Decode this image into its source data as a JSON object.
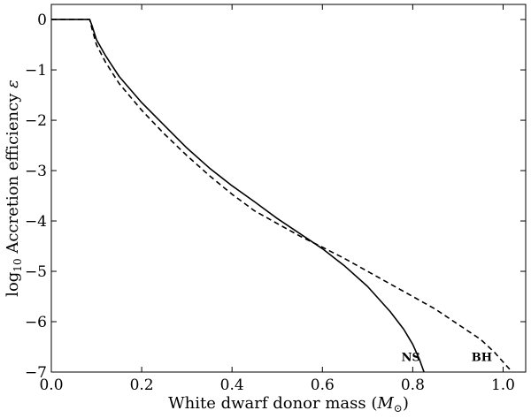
{
  "chart_data": {
    "type": "line",
    "xlabel": {
      "main": "White dwarf donor mass (",
      "sym": "M",
      "sub": "⊙",
      "close": ")"
    },
    "ylabel": {
      "prefix": "log",
      "sub": "10",
      "main": " Accretion efficiency ",
      "sym": "ε"
    },
    "xlim": [
      0.0,
      1.05
    ],
    "ylim": [
      -7,
      0.3
    ],
    "xticks": [
      0.0,
      0.2,
      0.4,
      0.6,
      0.8,
      1.0
    ],
    "xtick_labels": [
      "0.0",
      "0.2",
      "0.4",
      "0.6",
      "0.8",
      "1.0"
    ],
    "yticks": [
      0,
      -1,
      -2,
      -3,
      -4,
      -5,
      -6,
      -7
    ],
    "ytick_labels": [
      "0",
      "−1",
      "−2",
      "−3",
      "−4",
      "−5",
      "−6",
      "−7"
    ],
    "grid": false,
    "series": [
      {
        "name": "NS",
        "style": "solid",
        "color": "#000000",
        "points": [
          [
            0.0,
            0
          ],
          [
            0.08,
            0
          ],
          [
            0.085,
            0
          ],
          [
            0.09,
            -0.12
          ],
          [
            0.1,
            -0.4
          ],
          [
            0.12,
            -0.72
          ],
          [
            0.15,
            -1.13
          ],
          [
            0.2,
            -1.65
          ],
          [
            0.25,
            -2.1
          ],
          [
            0.3,
            -2.55
          ],
          [
            0.35,
            -2.95
          ],
          [
            0.4,
            -3.3
          ],
          [
            0.45,
            -3.62
          ],
          [
            0.5,
            -3.95
          ],
          [
            0.55,
            -4.25
          ],
          [
            0.6,
            -4.55
          ],
          [
            0.65,
            -4.9
          ],
          [
            0.7,
            -5.3
          ],
          [
            0.75,
            -5.8
          ],
          [
            0.78,
            -6.15
          ],
          [
            0.8,
            -6.45
          ],
          [
            0.815,
            -6.75
          ],
          [
            0.825,
            -7.0
          ]
        ]
      },
      {
        "name": "BH",
        "style": "dashed",
        "color": "#000000",
        "points": [
          [
            0.0,
            0
          ],
          [
            0.08,
            0
          ],
          [
            0.085,
            0
          ],
          [
            0.09,
            -0.18
          ],
          [
            0.1,
            -0.5
          ],
          [
            0.12,
            -0.85
          ],
          [
            0.15,
            -1.27
          ],
          [
            0.2,
            -1.8
          ],
          [
            0.25,
            -2.27
          ],
          [
            0.3,
            -2.7
          ],
          [
            0.35,
            -3.1
          ],
          [
            0.4,
            -3.47
          ],
          [
            0.45,
            -3.8
          ],
          [
            0.5,
            -4.05
          ],
          [
            0.55,
            -4.3
          ],
          [
            0.6,
            -4.52
          ],
          [
            0.65,
            -4.75
          ],
          [
            0.7,
            -5.0
          ],
          [
            0.75,
            -5.25
          ],
          [
            0.8,
            -5.5
          ],
          [
            0.85,
            -5.75
          ],
          [
            0.9,
            -6.05
          ],
          [
            0.95,
            -6.35
          ],
          [
            0.98,
            -6.6
          ],
          [
            1.0,
            -6.8
          ],
          [
            1.02,
            -7.0
          ]
        ]
      }
    ],
    "annotations": [
      {
        "text": "NS",
        "x": 0.775,
        "y": -6.78
      },
      {
        "text": "BH",
        "x": 0.93,
        "y": -6.78
      }
    ]
  }
}
